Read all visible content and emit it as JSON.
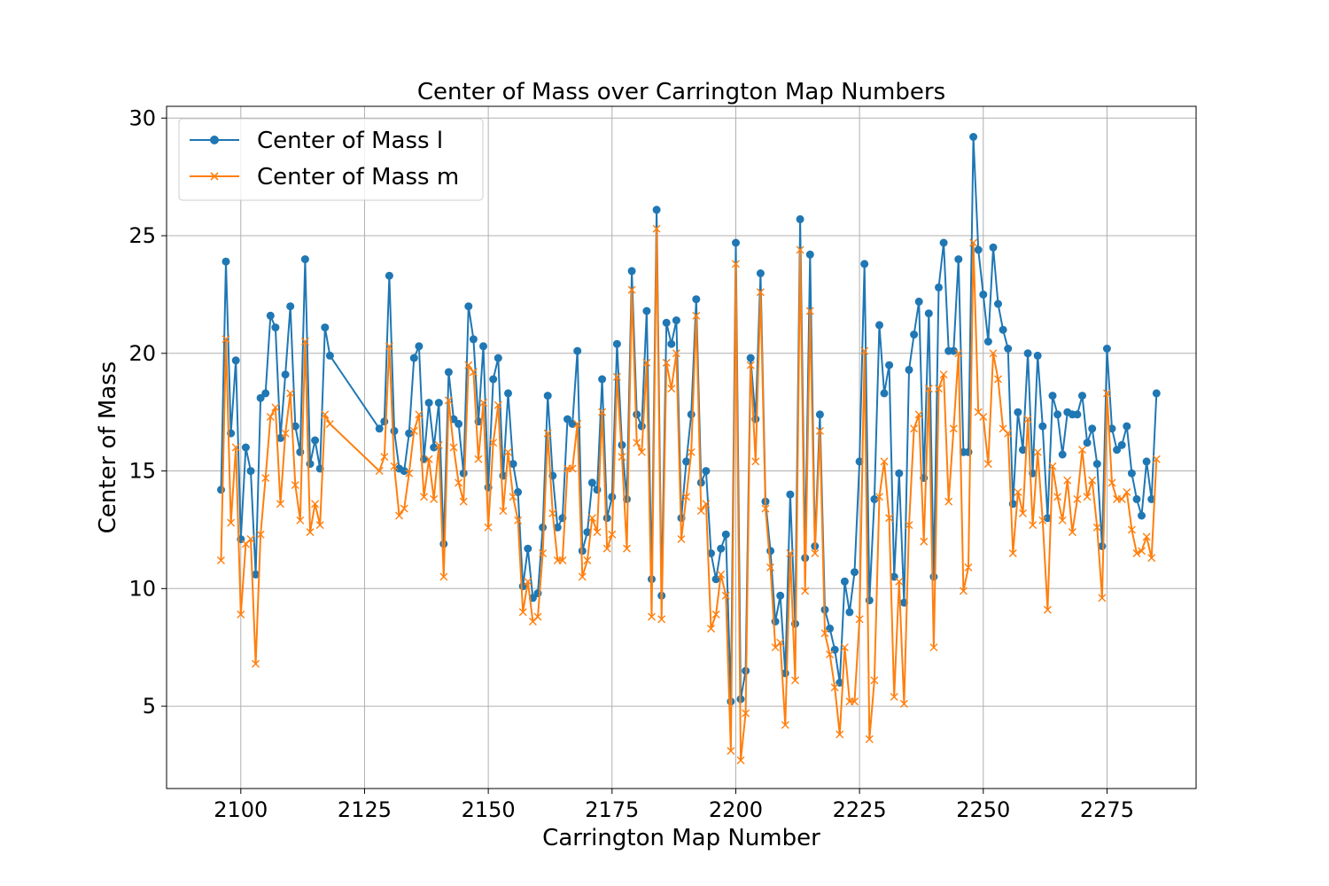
{
  "chart_data": {
    "type": "line",
    "title": "Center of Mass over Carrington Map Numbers",
    "xlabel": "Carrington Map Number",
    "ylabel": "Center of Mass",
    "xlim": [
      2085,
      2293
    ],
    "ylim": [
      1.5,
      30.5
    ],
    "xticks": [
      2100,
      2125,
      2150,
      2175,
      2200,
      2225,
      2250,
      2275
    ],
    "yticks": [
      5,
      10,
      15,
      20,
      25,
      30
    ],
    "grid": true,
    "legend_position": "top-left",
    "x": [
      2096,
      2097,
      2098,
      2099,
      2100,
      2101,
      2102,
      2103,
      2104,
      2105,
      2106,
      2107,
      2108,
      2109,
      2110,
      2111,
      2112,
      2113,
      2114,
      2115,
      2116,
      2117,
      2118,
      2128,
      2129,
      2130,
      2131,
      2132,
      2133,
      2134,
      2135,
      2136,
      2137,
      2138,
      2139,
      2140,
      2141,
      2142,
      2143,
      2144,
      2145,
      2146,
      2147,
      2148,
      2149,
      2150,
      2151,
      2152,
      2153,
      2154,
      2155,
      2156,
      2157,
      2158,
      2159,
      2160,
      2161,
      2162,
      2163,
      2164,
      2165,
      2166,
      2167,
      2168,
      2169,
      2170,
      2171,
      2172,
      2173,
      2174,
      2175,
      2176,
      2177,
      2178,
      2179,
      2180,
      2181,
      2182,
      2183,
      2184,
      2185,
      2186,
      2187,
      2188,
      2189,
      2190,
      2191,
      2192,
      2193,
      2194,
      2195,
      2196,
      2197,
      2198,
      2199,
      2200,
      2201,
      2202,
      2203,
      2204,
      2205,
      2206,
      2207,
      2208,
      2209,
      2210,
      2211,
      2212,
      2213,
      2214,
      2215,
      2216,
      2217,
      2218,
      2219,
      2220,
      2221,
      2222,
      2223,
      2224,
      2225,
      2226,
      2227,
      2228,
      2229,
      2230,
      2231,
      2232,
      2233,
      2234,
      2235,
      2236,
      2237,
      2238,
      2239,
      2240,
      2241,
      2242,
      2243,
      2244,
      2245,
      2246,
      2247,
      2248,
      2249,
      2250,
      2251,
      2252,
      2253,
      2254,
      2255,
      2256,
      2257,
      2258,
      2259,
      2260,
      2261,
      2262,
      2263,
      2264,
      2265,
      2266,
      2267,
      2268,
      2269,
      2270,
      2271,
      2272,
      2273,
      2274,
      2275,
      2276,
      2277,
      2278,
      2279,
      2280,
      2281,
      2282,
      2283,
      2284,
      2285
    ],
    "series": [
      {
        "name": "Center of Mass l",
        "color": "#1f77b4",
        "marker": "circle",
        "values": [
          14.2,
          23.9,
          16.6,
          19.7,
          12.1,
          16.0,
          15.0,
          10.6,
          18.1,
          18.3,
          21.6,
          21.1,
          16.4,
          19.1,
          22.0,
          16.9,
          15.8,
          24.0,
          15.3,
          16.3,
          15.1,
          21.1,
          19.9,
          16.8,
          17.1,
          23.3,
          16.7,
          15.1,
          15.0,
          16.6,
          19.8,
          20.3,
          15.5,
          17.9,
          16.0,
          17.9,
          11.9,
          19.2,
          17.2,
          17.0,
          14.9,
          22.0,
          20.6,
          17.1,
          20.3,
          14.3,
          18.9,
          19.8,
          14.8,
          18.3,
          15.3,
          14.1,
          10.1,
          11.7,
          9.6,
          9.8,
          12.6,
          18.2,
          14.8,
          12.6,
          13.0,
          17.2,
          17.0,
          20.1,
          11.6,
          12.4,
          14.5,
          14.2,
          18.9,
          13.0,
          13.9,
          20.4,
          16.1,
          13.8,
          23.5,
          17.4,
          16.9,
          21.8,
          10.4,
          26.1,
          9.7,
          21.3,
          20.4,
          21.4,
          13.0,
          15.4,
          17.4,
          22.3,
          14.5,
          15.0,
          11.5,
          10.4,
          11.7,
          12.3,
          5.2,
          24.7,
          5.3,
          6.5,
          19.8,
          17.2,
          23.4,
          13.7,
          11.6,
          8.6,
          9.7,
          6.4,
          14.0,
          8.5,
          25.7,
          11.3,
          24.2,
          11.8,
          17.4,
          9.1,
          8.3,
          7.4,
          6.0,
          10.3,
          9.0,
          10.7,
          15.4,
          23.8,
          9.5,
          13.8,
          21.2,
          18.3,
          19.5,
          10.5,
          14.9,
          9.4,
          19.3,
          20.8,
          22.2,
          14.7,
          21.7,
          10.5,
          22.8,
          24.7,
          20.1,
          20.1,
          24.0,
          15.8,
          15.8,
          29.2,
          24.4,
          22.5,
          20.5,
          24.5,
          22.1,
          21.0,
          20.2,
          13.6,
          17.5,
          15.9,
          20.0,
          14.9,
          19.9,
          16.9,
          13.0,
          18.2,
          17.4,
          15.7,
          17.5,
          17.4,
          17.4,
          18.2,
          16.2,
          16.8,
          15.3,
          11.8,
          20.2,
          16.8,
          15.9,
          16.1,
          16.9,
          14.9,
          13.8,
          13.1,
          15.4,
          13.8,
          18.3
        ]
      },
      {
        "name": "Center of Mass m",
        "color": "#ff7f0e",
        "marker": "x",
        "values": [
          11.2,
          20.6,
          12.8,
          16.0,
          8.9,
          11.9,
          12.1,
          6.8,
          12.3,
          14.7,
          17.3,
          17.7,
          13.6,
          16.6,
          18.3,
          14.4,
          12.9,
          20.5,
          12.4,
          13.6,
          12.7,
          17.4,
          17.0,
          15.0,
          15.6,
          20.3,
          15.2,
          13.1,
          13.4,
          14.9,
          16.7,
          17.4,
          13.9,
          15.5,
          13.8,
          16.1,
          10.5,
          18.0,
          16.0,
          14.5,
          13.7,
          19.5,
          19.2,
          15.5,
          17.9,
          12.6,
          16.2,
          17.8,
          13.3,
          15.8,
          13.9,
          12.9,
          9.0,
          10.3,
          8.6,
          8.8,
          11.5,
          16.6,
          13.2,
          11.2,
          11.2,
          15.1,
          15.1,
          17.0,
          10.5,
          11.2,
          13.0,
          12.4,
          17.5,
          11.7,
          12.3,
          19.0,
          15.6,
          11.7,
          22.7,
          16.2,
          15.8,
          19.6,
          8.8,
          25.3,
          8.7,
          19.6,
          18.5,
          20.0,
          12.1,
          13.9,
          15.8,
          21.6,
          13.3,
          13.6,
          8.3,
          8.9,
          10.6,
          9.7,
          3.1,
          23.8,
          2.7,
          4.7,
          19.5,
          15.4,
          22.6,
          13.4,
          10.9,
          7.5,
          7.7,
          4.2,
          11.5,
          6.1,
          24.4,
          9.9,
          21.8,
          11.5,
          16.7,
          8.1,
          7.2,
          5.8,
          3.8,
          7.5,
          5.2,
          5.2,
          8.7,
          20.1,
          3.6,
          6.1,
          13.9,
          15.4,
          13.0,
          5.4,
          10.3,
          5.1,
          12.7,
          16.8,
          17.4,
          12.0,
          18.5,
          7.5,
          18.5,
          19.1,
          13.7,
          16.8,
          20.0,
          9.9,
          10.9,
          24.7,
          17.5,
          17.3,
          15.3,
          20.0,
          18.9,
          16.8,
          16.6,
          11.5,
          14.1,
          13.2,
          17.2,
          12.7,
          15.8,
          12.9,
          9.1,
          15.2,
          13.9,
          12.9,
          14.6,
          12.4,
          13.8,
          15.9,
          13.9,
          14.6,
          12.6,
          9.6,
          18.3,
          14.5,
          13.8,
          13.8,
          14.1,
          12.5,
          11.5,
          11.6,
          12.2,
          11.3,
          15.5
        ]
      }
    ]
  }
}
